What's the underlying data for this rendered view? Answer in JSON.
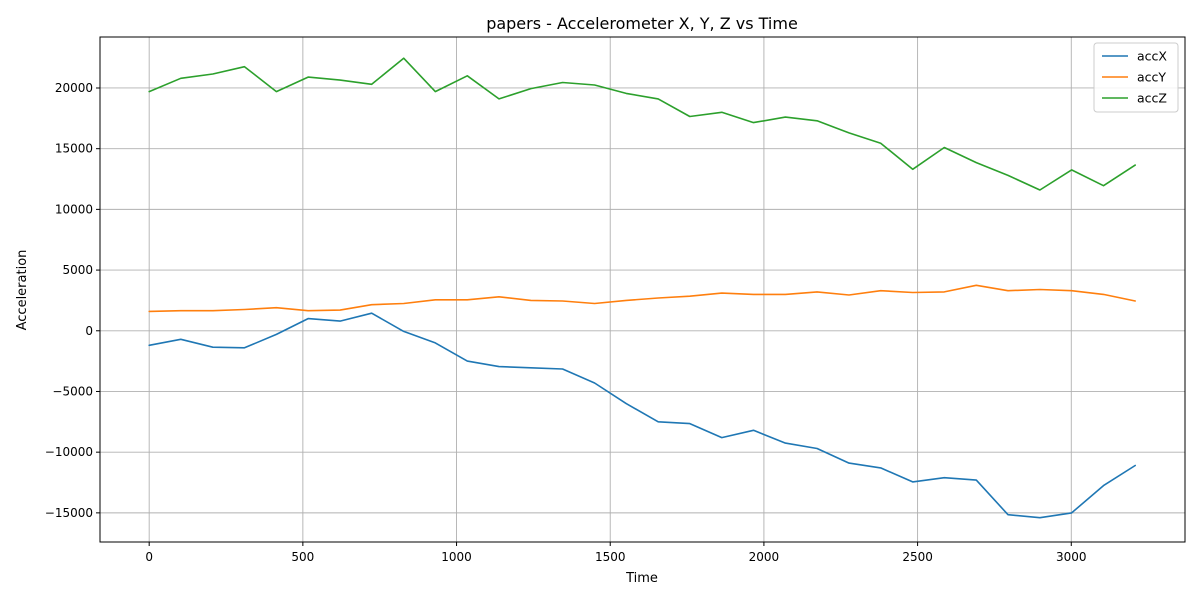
{
  "chart_data": {
    "type": "line",
    "title": "papers - Accelerometer X, Y, Z vs Time",
    "xlabel": "Time",
    "ylabel": "Acceleration",
    "xlim": [
      -160,
      3370
    ],
    "ylim": [
      -17400,
      24200
    ],
    "xticks": [
      0,
      500,
      1000,
      1500,
      2000,
      2500,
      3000
    ],
    "yticks": [
      -15000,
      -10000,
      -5000,
      0,
      5000,
      10000,
      15000,
      20000
    ],
    "xtick_labels": [
      "0",
      "500",
      "1000",
      "1500",
      "2000",
      "2500",
      "3000"
    ],
    "ytick_labels": [
      "−15000",
      "−10000",
      "−5000",
      "0",
      "5000",
      "10000",
      "15000",
      "20000"
    ],
    "grid": true,
    "legend_position": "top-right",
    "x": [
      0,
      103,
      207,
      310,
      414,
      517,
      621,
      724,
      828,
      931,
      1035,
      1138,
      1242,
      1345,
      1449,
      1552,
      1656,
      1759,
      1863,
      1966,
      2070,
      2173,
      2277,
      2380,
      2484,
      2587,
      2691,
      2794,
      2898,
      3001,
      3105,
      3208
    ],
    "series": [
      {
        "name": "accX",
        "color": "#1f77b4",
        "values": [
          -1200,
          -700,
          -1350,
          -1400,
          -300,
          1000,
          800,
          1450,
          -50,
          -1000,
          -2500,
          -2950,
          -3050,
          -3150,
          -4300,
          -6000,
          -7500,
          -7650,
          -8800,
          -8200,
          -9250,
          -9700,
          -10900,
          -11300,
          -12450,
          -12100,
          -12300,
          -15150,
          -15400,
          -15000,
          -12750,
          -11100
        ]
      },
      {
        "name": "accY",
        "color": "#ff7f0e",
        "values": [
          1600,
          1650,
          1650,
          1750,
          1900,
          1650,
          1700,
          2150,
          2250,
          2550,
          2550,
          2800,
          2500,
          2450,
          2250,
          2500,
          2700,
          2850,
          3100,
          3000,
          3000,
          3200,
          2950,
          3300,
          3150,
          3200,
          3750,
          3300,
          3400,
          3300,
          3000,
          2450
        ]
      },
      {
        "name": "accZ",
        "color": "#2ca02c",
        "values": [
          19700,
          20800,
          21150,
          21750,
          19700,
          20900,
          20650,
          20300,
          22450,
          19700,
          21000,
          19100,
          19950,
          20450,
          20250,
          19550,
          19100,
          17650,
          18000,
          17150,
          17600,
          17300,
          16300,
          15450,
          13300,
          15100,
          13850,
          12800,
          11600,
          13250,
          11950,
          13650
        ]
      }
    ]
  }
}
